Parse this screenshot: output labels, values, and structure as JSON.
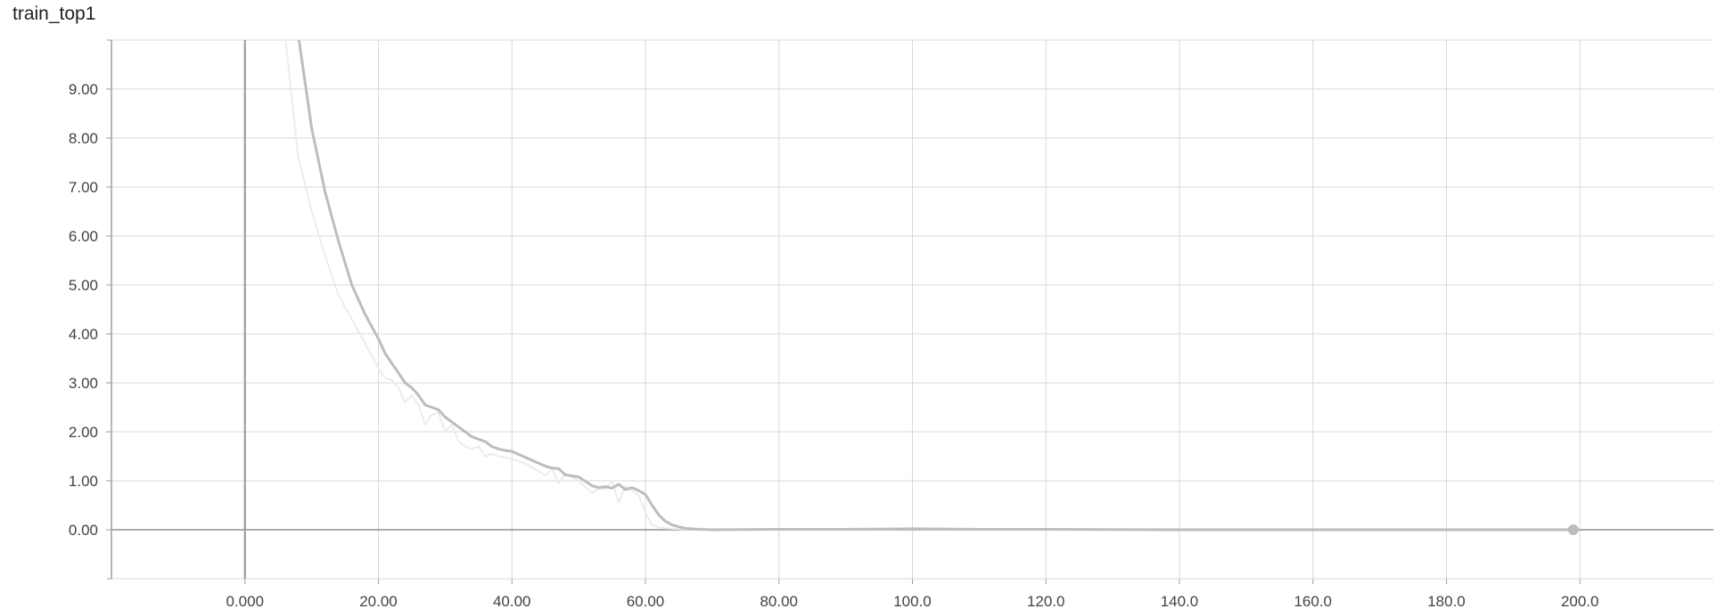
{
  "chart_data": {
    "type": "line",
    "title": "train_top1",
    "xlabel": "",
    "ylabel": "",
    "xlim": [
      -20,
      220
    ],
    "ylim": [
      -1,
      10
    ],
    "grid": true,
    "x_ticks": [
      "0.000",
      "20.00",
      "40.00",
      "60.00",
      "80.00",
      "100.0",
      "120.0",
      "140.0",
      "160.0",
      "180.0",
      "200.0"
    ],
    "y_ticks": [
      "0.00",
      "1.00",
      "2.00",
      "3.00",
      "4.00",
      "5.00",
      "6.00",
      "7.00",
      "8.00",
      "9.00"
    ],
    "colors": {
      "smoothed": "#bdbdbd",
      "raw": "#ececec",
      "grid": "#d9d9d9",
      "axis": "#9e9e9e",
      "tick_label": "#424242"
    },
    "series": [
      {
        "role": "smoothed",
        "x": [
          8,
          10,
          12,
          14,
          16,
          18,
          20,
          21,
          22,
          23,
          24,
          25,
          26,
          27,
          28,
          29,
          30,
          31,
          32,
          33,
          34,
          35,
          36,
          37,
          38,
          39,
          40,
          42,
          44,
          45,
          46,
          47,
          48,
          50,
          52,
          53,
          54,
          55,
          56,
          57,
          58,
          59,
          60,
          61,
          62,
          63,
          64,
          65,
          66,
          68,
          70,
          80,
          90,
          100,
          110,
          120,
          140,
          160,
          180,
          199
        ],
        "y": [
          10.1,
          8.2,
          6.9,
          5.9,
          5.0,
          4.4,
          3.9,
          3.6,
          3.4,
          3.2,
          3.0,
          2.9,
          2.75,
          2.55,
          2.5,
          2.45,
          2.3,
          2.2,
          2.1,
          2.0,
          1.9,
          1.85,
          1.8,
          1.7,
          1.65,
          1.62,
          1.6,
          1.48,
          1.36,
          1.3,
          1.26,
          1.25,
          1.12,
          1.08,
          0.9,
          0.86,
          0.88,
          0.85,
          0.93,
          0.82,
          0.86,
          0.8,
          0.72,
          0.5,
          0.3,
          0.17,
          0.1,
          0.06,
          0.03,
          0.01,
          0.0,
          0.01,
          0.01,
          0.02,
          0.01,
          0.01,
          0.0,
          0.0,
          0.0,
          0.0
        ]
      },
      {
        "role": "raw",
        "x": [
          6,
          8,
          10,
          12,
          14,
          16,
          18,
          20,
          21,
          22,
          23,
          24,
          25,
          26,
          27,
          28,
          29,
          30,
          31,
          32,
          33,
          34,
          35,
          36,
          37,
          38,
          40,
          42,
          44,
          45,
          46,
          47,
          48,
          50,
          52,
          53,
          54,
          55,
          56,
          57,
          58,
          59,
          60,
          61,
          62,
          64,
          66,
          70,
          80,
          100,
          120,
          140,
          160,
          180,
          199
        ],
        "y": [
          10.1,
          7.6,
          6.5,
          5.6,
          4.8,
          4.3,
          3.8,
          3.3,
          3.1,
          3.05,
          2.9,
          2.6,
          2.75,
          2.55,
          2.15,
          2.35,
          2.4,
          2.0,
          2.15,
          1.8,
          1.7,
          1.65,
          1.7,
          1.5,
          1.55,
          1.5,
          1.45,
          1.35,
          1.2,
          1.1,
          1.25,
          0.95,
          1.15,
          1.0,
          0.75,
          0.85,
          0.82,
          1.0,
          0.55,
          0.9,
          0.8,
          0.7,
          0.35,
          0.1,
          0.05,
          0.02,
          0.01,
          0.0,
          0.0,
          0.01,
          0.0,
          0.0,
          0.0,
          0.0,
          0.0
        ]
      }
    ],
    "last_point": {
      "x": 199,
      "y": 0.0
    }
  }
}
